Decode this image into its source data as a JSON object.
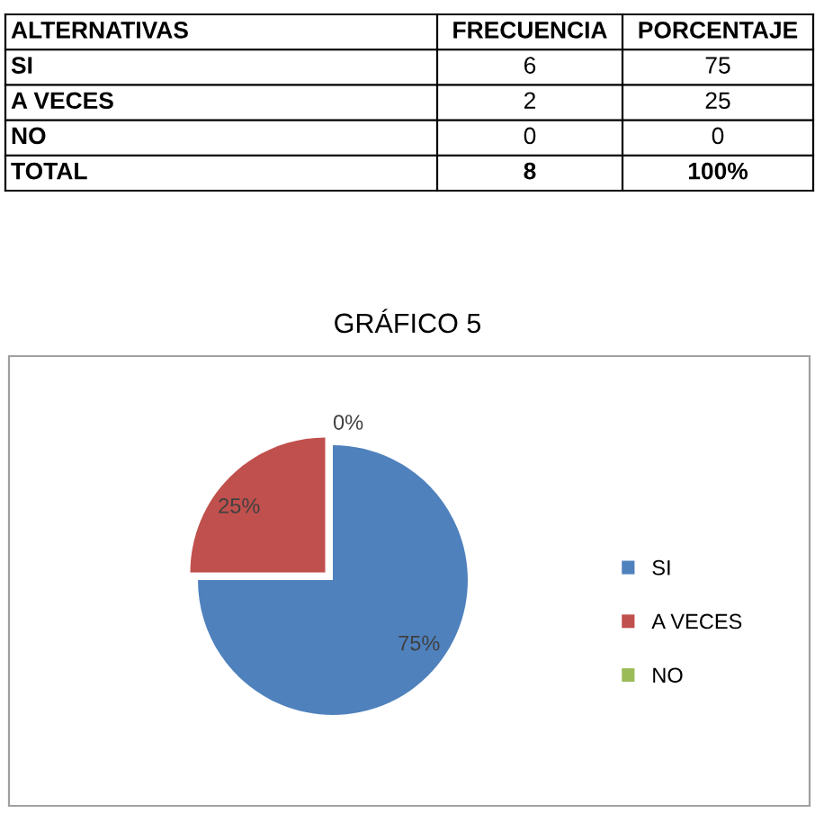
{
  "chart_data": {
    "type": "pie",
    "title": "GRÁFICO 5",
    "categories": [
      "SI",
      "A VECES",
      "NO"
    ],
    "values": [
      75,
      25,
      0
    ],
    "colors": [
      "#4f81bd",
      "#c0504d",
      "#9bbb59"
    ],
    "value_labels": [
      "75%",
      "25%",
      "0%"
    ],
    "legend": "right",
    "annotations": [
      "ALTERNATIVAS",
      "FRECUENCIA",
      "PORCENTAJE",
      "SI",
      "6",
      "75",
      "A VECES",
      "2",
      "25",
      "NO",
      "0",
      "0",
      "TOTAL",
      "8",
      "100%"
    ]
  }
}
